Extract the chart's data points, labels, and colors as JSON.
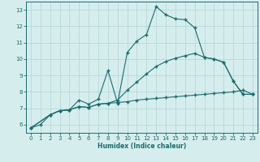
{
  "bg_color": "#d6edee",
  "grid_color": "#b8d8d8",
  "line_color": "#1a6b6b",
  "xlabel": "Humidex (Indice chaleur)",
  "xlim": [
    -0.5,
    23.5
  ],
  "ylim": [
    5.5,
    13.5
  ],
  "yticks": [
    6,
    7,
    8,
    9,
    10,
    11,
    12,
    13
  ],
  "xticks": [
    0,
    1,
    2,
    3,
    4,
    5,
    6,
    7,
    8,
    9,
    10,
    11,
    12,
    13,
    14,
    15,
    16,
    17,
    18,
    19,
    20,
    21,
    22,
    23
  ],
  "line1_x": [
    0,
    1,
    2,
    3,
    4,
    5,
    6,
    7,
    8,
    9,
    10,
    11,
    12,
    13,
    14,
    15,
    16,
    17,
    18,
    19,
    20,
    21,
    22,
    23
  ],
  "line1_y": [
    5.8,
    6.0,
    6.6,
    6.85,
    6.9,
    7.1,
    7.05,
    7.25,
    7.3,
    7.35,
    7.4,
    7.5,
    7.55,
    7.6,
    7.65,
    7.7,
    7.75,
    7.8,
    7.85,
    7.9,
    7.95,
    8.0,
    8.1,
    7.85
  ],
  "line2_x": [
    0,
    2,
    3,
    4,
    5,
    6,
    7,
    8,
    9,
    10,
    11,
    12,
    13,
    14,
    15,
    16,
    17,
    18,
    19,
    20,
    21,
    22,
    23
  ],
  "line2_y": [
    5.8,
    6.6,
    6.85,
    6.9,
    7.5,
    7.25,
    7.55,
    9.3,
    7.3,
    10.4,
    11.1,
    11.5,
    13.2,
    12.7,
    12.45,
    12.4,
    11.9,
    10.1,
    10.0,
    9.8,
    8.65,
    7.85,
    7.85
  ],
  "line3_x": [
    0,
    2,
    3,
    4,
    5,
    6,
    7,
    8,
    9,
    10,
    11,
    12,
    13,
    14,
    15,
    16,
    17,
    18,
    19,
    20,
    21,
    22,
    23
  ],
  "line3_y": [
    5.8,
    6.6,
    6.85,
    6.9,
    7.1,
    7.05,
    7.25,
    7.3,
    7.5,
    8.1,
    8.6,
    9.1,
    9.55,
    9.85,
    10.05,
    10.2,
    10.35,
    10.1,
    10.0,
    9.8,
    8.65,
    7.85,
    7.85
  ]
}
